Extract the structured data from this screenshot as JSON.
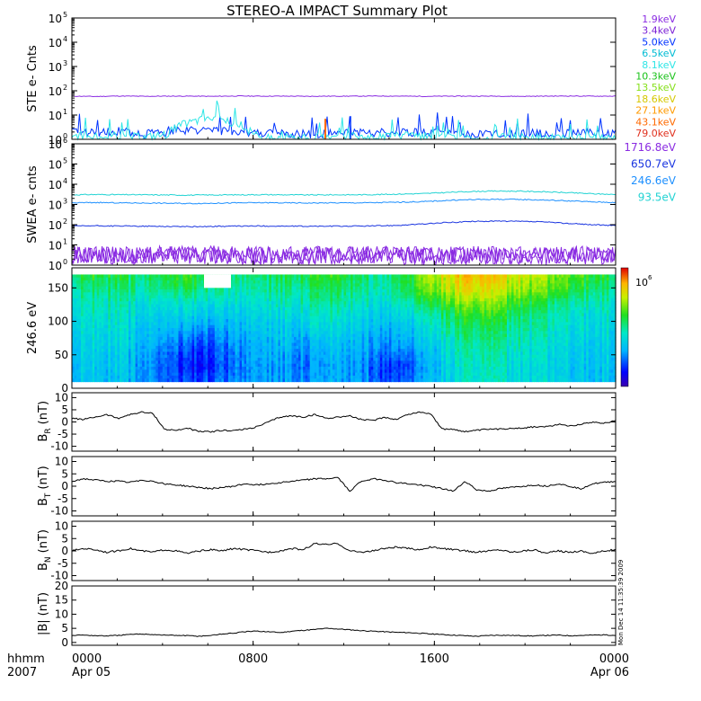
{
  "title": "STEREO-A IMPACT Summary Plot",
  "timestamp_vertical": "Mon Dec 14 11:35:39 2009",
  "colors": {
    "ste_channels": [
      "#8a2be2",
      "#7a1fd6",
      "#0033ff",
      "#00bcd4",
      "#2ee6e6",
      "#19c219",
      "#86e01a",
      "#d6c800",
      "#ff9a00",
      "#ff6a00",
      "#e0301e"
    ],
    "swea_channels": [
      "#8a2be2",
      "#1a35e0",
      "#1e90ff",
      "#22d3d3"
    ]
  },
  "chart_data": [
    {
      "type": "line",
      "panel": "ste",
      "ylabel": "STE e- Cnts",
      "yscale": "log",
      "ylim": [
        1,
        100000
      ],
      "yticks": [
        {
          "v": 1,
          "m": "0"
        },
        {
          "v": 10,
          "m": "1"
        },
        {
          "v": 100,
          "m": "2"
        },
        {
          "v": 1000,
          "m": "3"
        },
        {
          "v": 10000,
          "m": "4"
        },
        {
          "v": 100000,
          "m": "5"
        }
      ],
      "legend": [
        "1.9keV",
        "3.4keV",
        "5.0keV",
        "6.5keV",
        "8.1keV",
        "10.3keV",
        "13.5keV",
        "18.6keV",
        "27.1keV",
        "43.1keV",
        "79.0keV"
      ],
      "series": [
        {
          "name": "1.9keV",
          "values": [
            60,
            58,
            61,
            59,
            60,
            60,
            59,
            61,
            60,
            60,
            59,
            60,
            60,
            61,
            60,
            59,
            60,
            60,
            60,
            59,
            60,
            61,
            60,
            60
          ]
        },
        {
          "name": "5.0keV",
          "values": [
            2.0,
            1.8,
            2.2,
            1.6,
            1.9,
            2.5,
            2.4,
            1.9,
            1.7,
            1.8,
            1.6,
            1.7,
            1.8,
            1.9,
            2.0,
            1.8,
            1.7,
            1.6,
            1.8,
            1.7,
            1.8,
            1.7,
            1.9,
            1.8
          ]
        },
        {
          "name": "8.1keV",
          "values": [
            1.5,
            1.3,
            1.4,
            1.2,
            1.6,
            5,
            8,
            3,
            1.2,
            1.2,
            1.1,
            1.2,
            1.3,
            1.2,
            1.4,
            1.3,
            1.2,
            1.1,
            1.2,
            1.2,
            1.1,
            1.2,
            1.2,
            1.1
          ]
        }
      ]
    },
    {
      "type": "line",
      "panel": "swea",
      "ylabel": "SWEA e- cnts",
      "yscale": "log",
      "ylim": [
        1,
        1000000
      ],
      "yticks": [
        {
          "v": 1,
          "m": "0"
        },
        {
          "v": 10,
          "m": "1"
        },
        {
          "v": 100,
          "m": "2"
        },
        {
          "v": 1000,
          "m": "3"
        },
        {
          "v": 10000,
          "m": "4"
        },
        {
          "v": 100000,
          "m": "5"
        },
        {
          "v": 1000000,
          "m": "6"
        }
      ],
      "legend": [
        "1716.8eV",
        "650.7eV",
        "246.6eV",
        "93.5eV"
      ],
      "series": [
        {
          "name": "93.5eV",
          "values": [
            3000,
            3100,
            3050,
            3000,
            2950,
            2900,
            2950,
            3000,
            3050,
            3000,
            2950,
            3000,
            3000,
            3100,
            3300,
            3500,
            4000,
            4400,
            4600,
            4500,
            4200,
            3800,
            3400,
            3100
          ]
        },
        {
          "name": "246.6eV",
          "values": [
            1200,
            1250,
            1200,
            1180,
            1150,
            1120,
            1150,
            1200,
            1220,
            1200,
            1180,
            1200,
            1200,
            1240,
            1300,
            1400,
            1600,
            1750,
            1800,
            1760,
            1650,
            1500,
            1350,
            1250
          ]
        },
        {
          "name": "650.7eV",
          "values": [
            85,
            88,
            86,
            84,
            82,
            80,
            82,
            85,
            86,
            84,
            83,
            84,
            85,
            88,
            95,
            110,
            130,
            145,
            150,
            145,
            135,
            115,
            100,
            90
          ]
        },
        {
          "name": "1716.8eV",
          "values": [
            3,
            3.5,
            3,
            2.8,
            3.2,
            3,
            3.1,
            3,
            2.9,
            3,
            3.1,
            3,
            3,
            3.2,
            3,
            2.9,
            3,
            3.1,
            3,
            3,
            2.9,
            3.1,
            3,
            3
          ]
        }
      ]
    },
    {
      "type": "heatmap",
      "panel": "pitch-angle",
      "ylabel": "246.6 eV",
      "ylim": [
        0,
        180
      ],
      "yticks": [
        0,
        50,
        100,
        150
      ],
      "colorbar_label": "10",
      "colorbar_exponent": "6",
      "x_bins": 24,
      "y_bins": 9,
      "values_relative": [
        [
          0.55,
          0.58,
          0.55,
          0.52,
          0.55,
          0.6,
          0.55,
          0.5,
          0.52,
          0.55,
          0.58,
          0.6,
          0.55,
          0.5,
          0.55,
          0.7,
          0.8,
          0.85,
          0.8,
          0.75,
          0.7,
          0.65,
          0.6,
          0.55
        ],
        [
          0.5,
          0.52,
          0.5,
          0.48,
          0.5,
          0.55,
          0.5,
          0.45,
          0.48,
          0.5,
          0.52,
          0.55,
          0.5,
          0.48,
          0.52,
          0.65,
          0.75,
          0.8,
          0.75,
          0.7,
          0.65,
          0.6,
          0.55,
          0.5
        ],
        [
          0.45,
          0.48,
          0.45,
          0.42,
          0.4,
          0.45,
          0.42,
          0.4,
          0.42,
          0.45,
          0.48,
          0.5,
          0.45,
          0.42,
          0.45,
          0.55,
          0.65,
          0.7,
          0.66,
          0.6,
          0.55,
          0.5,
          0.48,
          0.45
        ],
        [
          0.42,
          0.45,
          0.42,
          0.38,
          0.35,
          0.38,
          0.35,
          0.36,
          0.38,
          0.4,
          0.42,
          0.44,
          0.4,
          0.38,
          0.38,
          0.45,
          0.55,
          0.6,
          0.58,
          0.52,
          0.48,
          0.45,
          0.42,
          0.42
        ],
        [
          0.4,
          0.42,
          0.4,
          0.35,
          0.3,
          0.3,
          0.28,
          0.32,
          0.35,
          0.36,
          0.38,
          0.4,
          0.36,
          0.34,
          0.32,
          0.4,
          0.5,
          0.55,
          0.52,
          0.48,
          0.45,
          0.42,
          0.4,
          0.4
        ],
        [
          0.38,
          0.4,
          0.38,
          0.32,
          0.25,
          0.22,
          0.22,
          0.28,
          0.32,
          0.34,
          0.3,
          0.35,
          0.32,
          0.3,
          0.28,
          0.35,
          0.45,
          0.5,
          0.48,
          0.45,
          0.42,
          0.4,
          0.38,
          0.38
        ],
        [
          0.36,
          0.38,
          0.35,
          0.3,
          0.2,
          0.16,
          0.18,
          0.25,
          0.3,
          0.3,
          0.26,
          0.32,
          0.3,
          0.25,
          0.22,
          0.3,
          0.42,
          0.48,
          0.45,
          0.42,
          0.4,
          0.38,
          0.36,
          0.36
        ],
        [
          0.35,
          0.36,
          0.34,
          0.28,
          0.18,
          0.14,
          0.16,
          0.24,
          0.28,
          0.28,
          0.24,
          0.3,
          0.28,
          0.2,
          0.15,
          0.28,
          0.4,
          0.45,
          0.42,
          0.4,
          0.38,
          0.36,
          0.35,
          0.35
        ],
        [
          0.34,
          0.35,
          0.33,
          0.28,
          0.2,
          0.18,
          0.2,
          0.25,
          0.28,
          0.28,
          0.26,
          0.3,
          0.28,
          0.22,
          0.18,
          0.3,
          0.4,
          0.44,
          0.42,
          0.4,
          0.38,
          0.36,
          0.34,
          0.34
        ]
      ]
    },
    {
      "type": "line",
      "panel": "br",
      "ylabel": "B",
      "ylabel_sub": "R",
      "ylabel_unit": "(nT)",
      "ylim": [
        -12,
        12
      ],
      "yticks": [
        -10,
        -5,
        0,
        5,
        10
      ],
      "series": [
        {
          "name": "B_R",
          "values": [
            1.5,
            1,
            2,
            3,
            1.5,
            3,
            4,
            3.5,
            -3,
            -3.5,
            -2.5,
            -4,
            -4,
            -3.5,
            -3.5,
            -3,
            -2,
            0,
            2,
            2.5,
            2,
            3,
            1.5,
            2,
            2.5,
            1,
            0.5,
            2,
            1,
            3,
            4,
            3.5,
            -3,
            -3,
            -4,
            -3.5,
            -3,
            -3,
            -2.5,
            -2.5,
            -2,
            -2,
            -1,
            -1.5,
            -1,
            0,
            -0.5,
            0.5
          ]
        }
      ]
    },
    {
      "type": "line",
      "panel": "bt",
      "ylabel": "B",
      "ylabel_sub": "T",
      "ylabel_unit": "(nT)",
      "ylim": [
        -12,
        12
      ],
      "yticks": [
        -10,
        -5,
        0,
        5,
        10
      ],
      "series": [
        {
          "name": "B_T",
          "values": [
            2,
            3,
            2.5,
            2,
            2,
            1.5,
            2.5,
            2,
            1,
            0.5,
            0,
            -0.5,
            -1,
            -0.5,
            0,
            1,
            0.5,
            1,
            1.5,
            2,
            2.5,
            3,
            3,
            3.5,
            -2,
            2,
            3,
            2.5,
            1.5,
            1,
            0.5,
            0,
            -1,
            -2,
            2,
            -1.5,
            -2,
            -1,
            -0.5,
            0,
            0.5,
            0,
            1,
            0,
            -1,
            1,
            1.5,
            2
          ]
        }
      ]
    },
    {
      "type": "line",
      "panel": "bn",
      "ylabel": "B",
      "ylabel_sub": "N",
      "ylabel_unit": "(nT)",
      "ylim": [
        -12,
        12
      ],
      "yticks": [
        -10,
        -5,
        0,
        5,
        10
      ],
      "series": [
        {
          "name": "B_N",
          "values": [
            0,
            1,
            0.5,
            -0.5,
            0,
            1,
            0,
            -0.5,
            0.5,
            0,
            -1,
            0,
            0.5,
            0,
            1,
            0.5,
            0,
            -0.5,
            0,
            1,
            0.5,
            3,
            2.5,
            3,
            0,
            -0.5,
            0,
            1,
            1.5,
            1,
            0.5,
            1.5,
            1,
            0.5,
            0,
            -0.5,
            0,
            0.5,
            -0.5,
            0,
            0.5,
            -1,
            0,
            -0.5,
            0,
            -1,
            0,
            0.5
          ]
        }
      ]
    },
    {
      "type": "line",
      "panel": "bmag",
      "ylabel": "|B|",
      "ylabel_unit": "(nT)",
      "ylim": [
        -1,
        20
      ],
      "yticks": [
        0,
        5,
        10,
        15,
        20
      ],
      "series": [
        {
          "name": "|B|",
          "values": [
            2.5,
            2.6,
            2.4,
            2.3,
            2.5,
            2.8,
            3,
            2.8,
            2.6,
            2.5,
            2.4,
            2.2,
            2.5,
            3,
            3.3,
            3.8,
            4,
            3.8,
            3.5,
            4,
            4.3,
            4.6,
            5,
            4.8,
            4.5,
            4.2,
            4,
            3.8,
            3.6,
            3.5,
            3.3,
            3,
            2.8,
            2.6,
            2.4,
            2.2,
            2.5,
            2.6,
            2.5,
            2.4,
            2.3,
            2.5,
            2.6,
            2.4,
            2.5,
            2.6,
            2.7,
            2.5
          ]
        }
      ]
    }
  ],
  "x_axis": {
    "row1_label": "hhmm",
    "row2_label": "2007",
    "ticks": [
      {
        "label": "0000",
        "sub": "Apr 05",
        "frac": 0
      },
      {
        "label": "0800",
        "sub": "",
        "frac": 0.3333
      },
      {
        "label": "1600",
        "sub": "",
        "frac": 0.6667
      },
      {
        "label": "0000",
        "sub": "Apr 06",
        "frac": 1
      }
    ]
  }
}
